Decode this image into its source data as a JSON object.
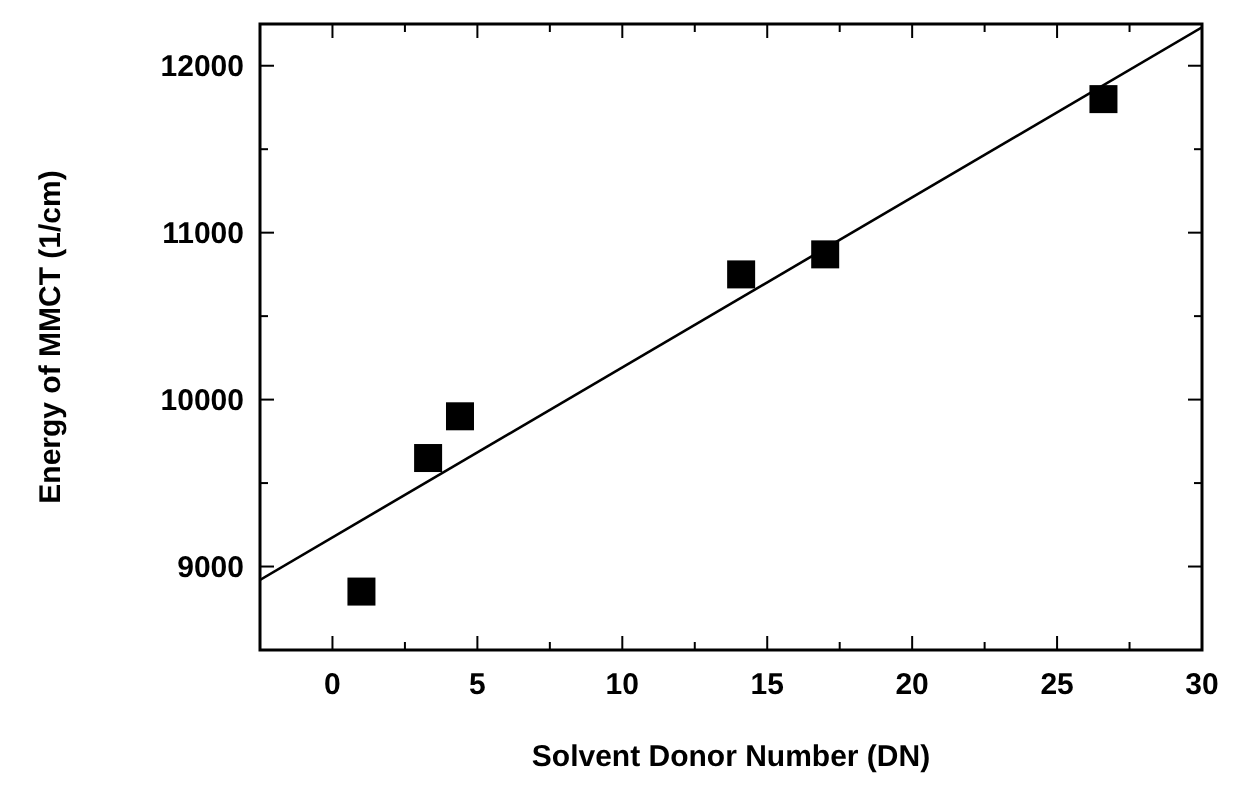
{
  "chart_data": {
    "type": "scatter",
    "xlabel": "Solvent Donor Number (DN)",
    "ylabel": "Energy of MMCT (1/cm)",
    "xlim": [
      -2.5,
      30
    ],
    "ylim": [
      8500,
      12250
    ],
    "xticks": [
      {
        "value": -2.5,
        "label": null
      },
      0,
      {
        "value": 2.5,
        "label": null
      },
      5,
      {
        "value": 7.5,
        "label": null
      },
      10,
      {
        "value": 12.5,
        "label": null
      },
      15,
      {
        "value": 17.5,
        "label": null
      },
      20,
      {
        "value": 22.5,
        "label": null
      },
      25,
      {
        "value": 27.5,
        "label": null
      },
      30
    ],
    "yticks": [
      {
        "value": 8500,
        "label": null
      },
      9000,
      {
        "value": 9500,
        "label": null
      },
      10000,
      {
        "value": 10500,
        "label": null
      },
      11000,
      {
        "value": 11500,
        "label": null
      },
      12000
    ],
    "marker": "square",
    "grid": false,
    "series": [
      {
        "color": "#000000",
        "x": [
          1.0,
          3.3,
          4.4,
          14.1,
          17.0,
          26.6
        ],
        "values": [
          8850,
          9650,
          9900,
          10750,
          10870,
          11800
        ]
      },
      {
        "type": "line",
        "color": "#000000",
        "marker": "none",
        "x": [
          -2.5,
          30
        ],
        "values": [
          8920,
          12230
        ]
      }
    ]
  }
}
